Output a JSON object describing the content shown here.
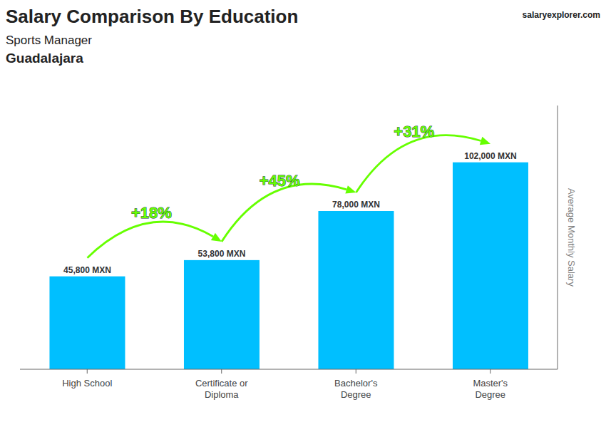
{
  "chart_data": {
    "type": "bar",
    "title": "Salary Comparison By Education",
    "subtitle": [
      "Sports Manager",
      "Guadalajara"
    ],
    "y_label": "Average Monthly Salary",
    "source": [
      "salary",
      "explorer",
      ".com"
    ],
    "categories": [
      "High School",
      "Certificate or\nDiploma",
      "Bachelor's\nDegree",
      "Master's\nDegree"
    ],
    "values": [
      45800,
      53800,
      78000,
      102000
    ],
    "value_labels": [
      "45,800 MXN",
      "53,800 MXN",
      "78,000 MXN",
      "102,000 MXN"
    ],
    "data_labels": true,
    "color": "#00bfff",
    "ylim": [
      0,
      130000
    ],
    "tick_labels": "x",
    "grid": false,
    "annotations": [
      {
        "text": "+18%",
        "from": "High School",
        "to": "Certificate or\nDiploma",
        "color": "#66ff00"
      },
      {
        "text": "+45%",
        "from": "Certificate or\nDiploma",
        "to": "Bachelor's\nDegree",
        "color": "#66ff00"
      },
      {
        "text": "+31%",
        "from": "Bachelor's\nDegree",
        "to": "Master's\nDegree",
        "color": "#66ff00"
      }
    ]
  }
}
